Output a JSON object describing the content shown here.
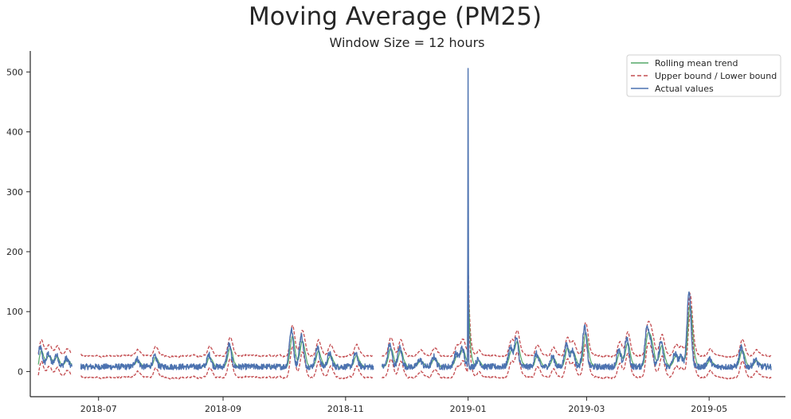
{
  "chart_data": {
    "type": "line",
    "title": "Moving Average (PM25)",
    "subtitle": "Window Size = 12 hours",
    "xlabel": "",
    "ylabel": "",
    "x_range": [
      "2018-05-28",
      "2019-06-08"
    ],
    "ylim": [
      -42,
      535
    ],
    "x_ticks": [
      "2018-07",
      "2018-09",
      "2018-11",
      "2019-01",
      "2019-03",
      "2019-05"
    ],
    "y_ticks": [
      0,
      100,
      200,
      300,
      400,
      500
    ],
    "grid": false,
    "legend_position": "top-right",
    "legend": [
      {
        "label": "Rolling mean trend",
        "color": "#55a868",
        "style": "solid"
      },
      {
        "label": "Upper bound / Lower bound",
        "color": "#c44e52",
        "style": "dashed"
      },
      {
        "label": "Actual values",
        "color": "#4c72b0",
        "style": "solid"
      }
    ],
    "data_range": [
      "2018-06-01",
      "2019-06-01"
    ],
    "band_half_width": 18,
    "gaps": [
      [
        "2018-06-18",
        "2018-06-22"
      ],
      [
        "2018-11-15",
        "2018-11-19"
      ]
    ],
    "series": [
      {
        "name": "Actual values",
        "color": "#4c72b0",
        "base_level": 8,
        "peaks": [
          {
            "date": "2018-06-02",
            "value": 40
          },
          {
            "date": "2018-06-06",
            "value": 30
          },
          {
            "date": "2018-06-10",
            "value": 28
          },
          {
            "date": "2018-06-15",
            "value": 22
          },
          {
            "date": "2018-07-20",
            "value": 22
          },
          {
            "date": "2018-07-29",
            "value": 25
          },
          {
            "date": "2018-08-25",
            "value": 28
          },
          {
            "date": "2018-09-04",
            "value": 45
          },
          {
            "date": "2018-10-05",
            "value": 70
          },
          {
            "date": "2018-10-10",
            "value": 60
          },
          {
            "date": "2018-10-18",
            "value": 40
          },
          {
            "date": "2018-10-24",
            "value": 30
          },
          {
            "date": "2018-11-06",
            "value": 30
          },
          {
            "date": "2018-11-23",
            "value": 45
          },
          {
            "date": "2018-11-28",
            "value": 40
          },
          {
            "date": "2018-12-08",
            "value": 20
          },
          {
            "date": "2018-12-15",
            "value": 25
          },
          {
            "date": "2018-12-26",
            "value": 30
          },
          {
            "date": "2018-12-29",
            "value": 40
          },
          {
            "date": "2019-01-01",
            "value": 510
          },
          {
            "date": "2019-01-06",
            "value": 20
          },
          {
            "date": "2019-01-22",
            "value": 40
          },
          {
            "date": "2019-01-25",
            "value": 55
          },
          {
            "date": "2019-02-04",
            "value": 30
          },
          {
            "date": "2019-02-12",
            "value": 25
          },
          {
            "date": "2019-02-19",
            "value": 45
          },
          {
            "date": "2019-02-22",
            "value": 35
          },
          {
            "date": "2019-02-28",
            "value": 75
          },
          {
            "date": "2019-03-17",
            "value": 35
          },
          {
            "date": "2019-03-21",
            "value": 55
          },
          {
            "date": "2019-03-31",
            "value": 70
          },
          {
            "date": "2019-04-02",
            "value": 45
          },
          {
            "date": "2019-04-07",
            "value": 50
          },
          {
            "date": "2019-04-14",
            "value": 30
          },
          {
            "date": "2019-04-17",
            "value": 25
          },
          {
            "date": "2019-04-21",
            "value": 133
          },
          {
            "date": "2019-05-01",
            "value": 22
          },
          {
            "date": "2019-05-17",
            "value": 40
          },
          {
            "date": "2019-05-24",
            "value": 20
          }
        ]
      }
    ]
  }
}
